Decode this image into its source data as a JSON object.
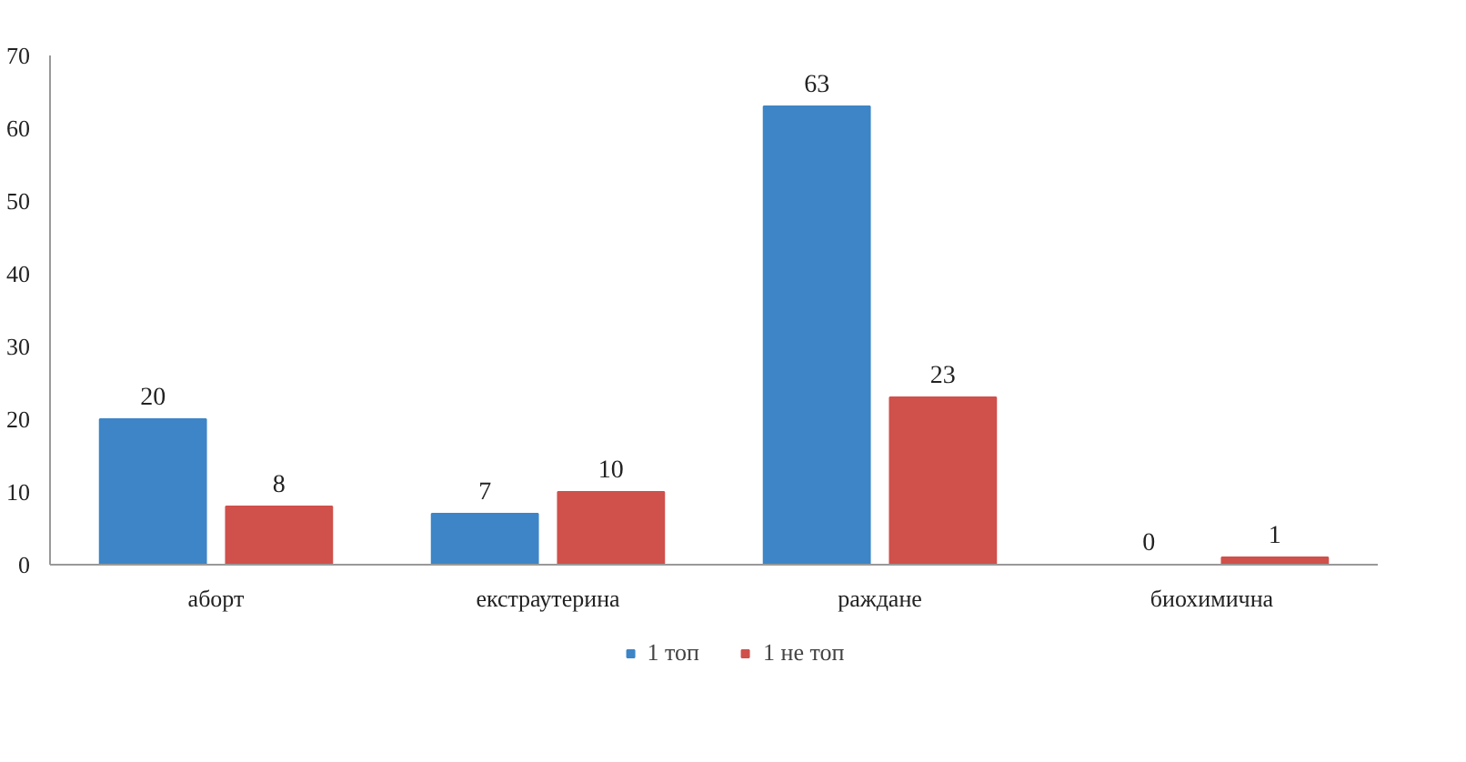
{
  "chart_data": {
    "type": "bar",
    "categories": [
      "аборт",
      "екстраутерина",
      "раждане",
      "биохимична"
    ],
    "series": [
      {
        "name": "1 топ",
        "color": "#3d85c6",
        "values": [
          20,
          7,
          63,
          0
        ]
      },
      {
        "name": "1 не топ",
        "color": "#d0504b",
        "values": [
          8,
          10,
          23,
          1
        ]
      }
    ],
    "ylim": [
      0,
      70
    ],
    "yticks": [
      0,
      10,
      20,
      30,
      40,
      50,
      60,
      70
    ],
    "data_labels": true,
    "legend": "bottom",
    "grid": false
  }
}
